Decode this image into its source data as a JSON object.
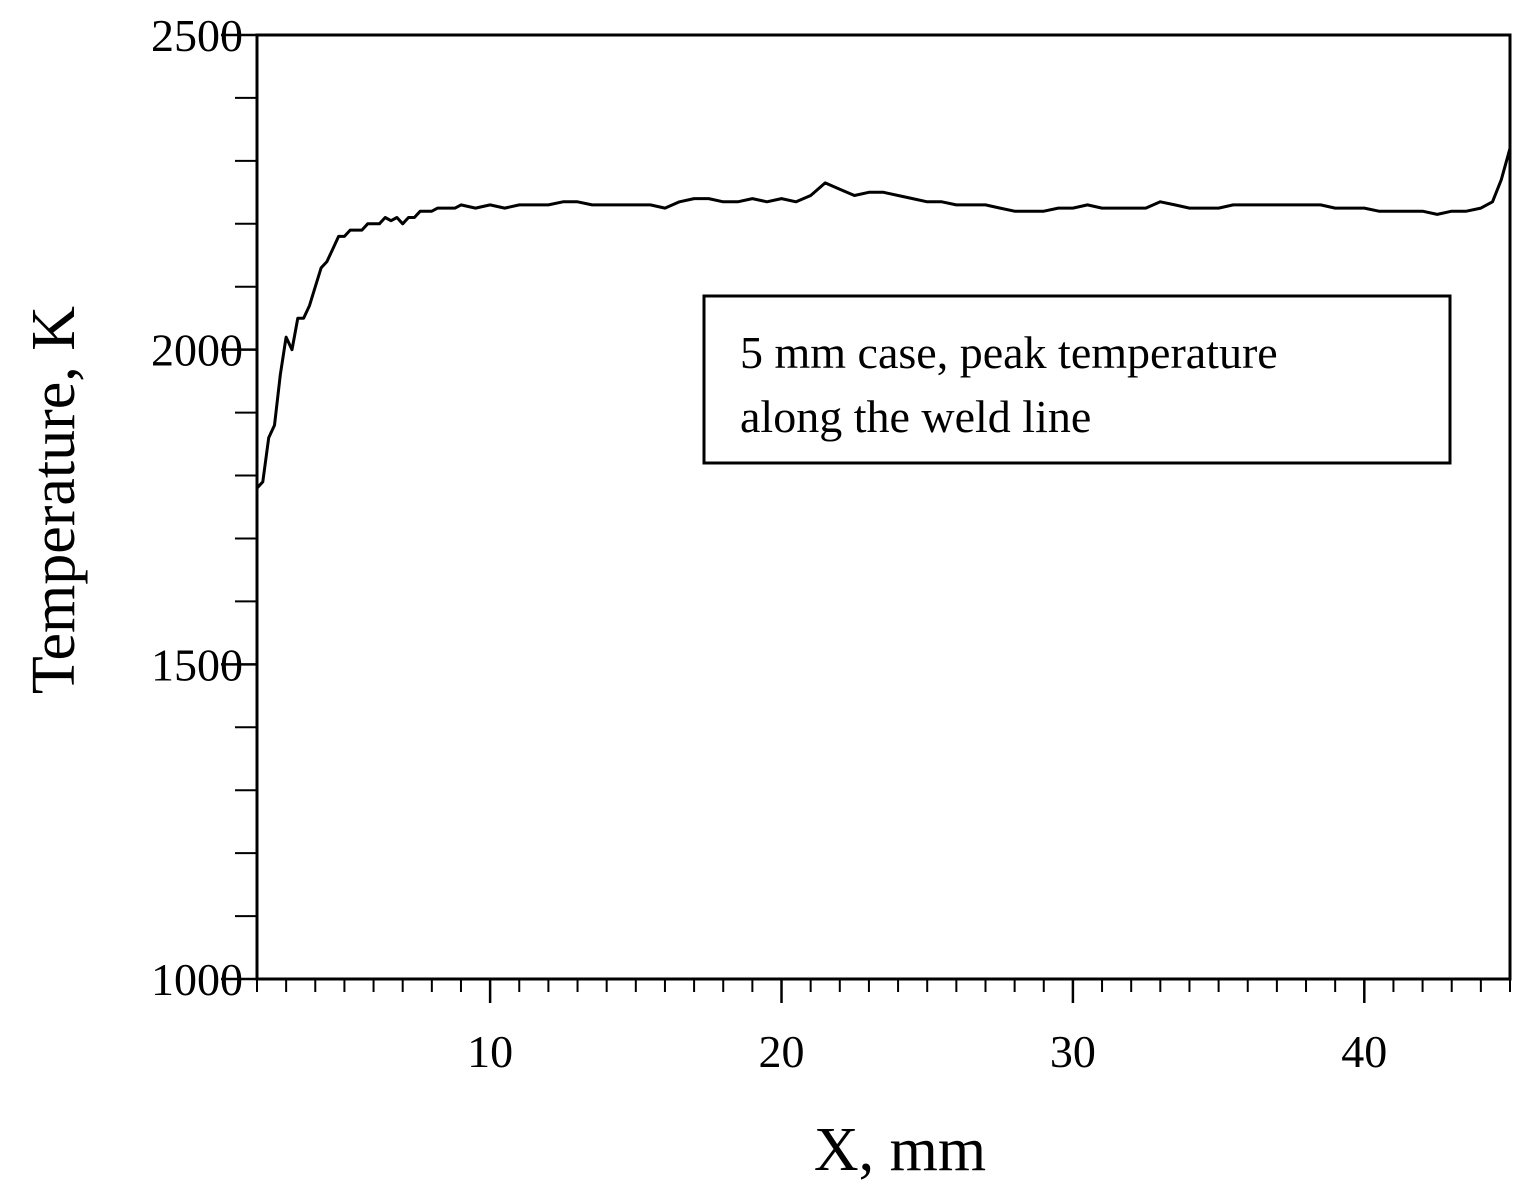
{
  "chart_data": {
    "type": "line",
    "title": "",
    "xlabel": "X, mm",
    "ylabel": "Temperature, K",
    "xlim": [
      2,
      45
    ],
    "ylim": [
      1000,
      2500
    ],
    "x_ticks": [
      10,
      20,
      30,
      40
    ],
    "x_minor_step": 1,
    "y_ticks": [
      1000,
      1500,
      2000,
      2500
    ],
    "y_minor_step": 100,
    "grid": false,
    "annotation": {
      "lines": [
        "5 mm case, peak temperature",
        "along the weld line"
      ]
    },
    "colors": {
      "line": "#000000",
      "axes": "#000000"
    },
    "series": [
      {
        "name": "",
        "x": [
          2.0,
          2.2,
          2.4,
          2.6,
          2.8,
          3.0,
          3.2,
          3.4,
          3.6,
          3.8,
          4.0,
          4.2,
          4.4,
          4.6,
          4.8,
          5.0,
          5.2,
          5.4,
          5.6,
          5.8,
          6.0,
          6.2,
          6.4,
          6.6,
          6.8,
          7.0,
          7.2,
          7.4,
          7.6,
          7.8,
          8.0,
          8.2,
          8.4,
          8.6,
          8.8,
          9.0,
          9.5,
          10.0,
          10.5,
          11.0,
          11.5,
          12.0,
          12.5,
          13.0,
          13.5,
          14.0,
          14.5,
          15.0,
          15.5,
          16.0,
          16.5,
          17.0,
          17.5,
          18.0,
          18.5,
          19.0,
          19.5,
          20.0,
          20.5,
          21.0,
          21.5,
          22.0,
          22.5,
          23.0,
          23.5,
          24.0,
          24.5,
          25.0,
          25.5,
          26.0,
          26.5,
          27.0,
          27.5,
          28.0,
          28.5,
          29.0,
          29.5,
          30.0,
          30.5,
          31.0,
          31.5,
          32.0,
          32.5,
          33.0,
          33.5,
          34.0,
          34.5,
          35.0,
          35.5,
          36.0,
          36.5,
          37.0,
          37.5,
          38.0,
          38.5,
          39.0,
          39.5,
          40.0,
          40.5,
          41.0,
          41.5,
          42.0,
          42.5,
          43.0,
          43.5,
          44.0,
          44.4,
          44.7,
          45.0
        ],
        "y": [
          1780,
          1790,
          1860,
          1880,
          1960,
          2020,
          2000,
          2050,
          2050,
          2070,
          2100,
          2130,
          2140,
          2160,
          2180,
          2180,
          2190,
          2190,
          2190,
          2200,
          2200,
          2200,
          2210,
          2205,
          2210,
          2200,
          2210,
          2210,
          2220,
          2220,
          2220,
          2225,
          2225,
          2225,
          2225,
          2230,
          2225,
          2230,
          2225,
          2230,
          2230,
          2230,
          2235,
          2235,
          2230,
          2230,
          2230,
          2230,
          2230,
          2225,
          2235,
          2240,
          2240,
          2235,
          2235,
          2240,
          2235,
          2240,
          2235,
          2245,
          2265,
          2255,
          2245,
          2250,
          2250,
          2245,
          2240,
          2235,
          2235,
          2230,
          2230,
          2230,
          2225,
          2220,
          2220,
          2220,
          2225,
          2225,
          2230,
          2225,
          2225,
          2225,
          2225,
          2235,
          2230,
          2225,
          2225,
          2225,
          2230,
          2230,
          2230,
          2230,
          2230,
          2230,
          2230,
          2225,
          2225,
          2225,
          2220,
          2220,
          2220,
          2220,
          2215,
          2220,
          2220,
          2225,
          2235,
          2270,
          2320
        ]
      }
    ]
  }
}
